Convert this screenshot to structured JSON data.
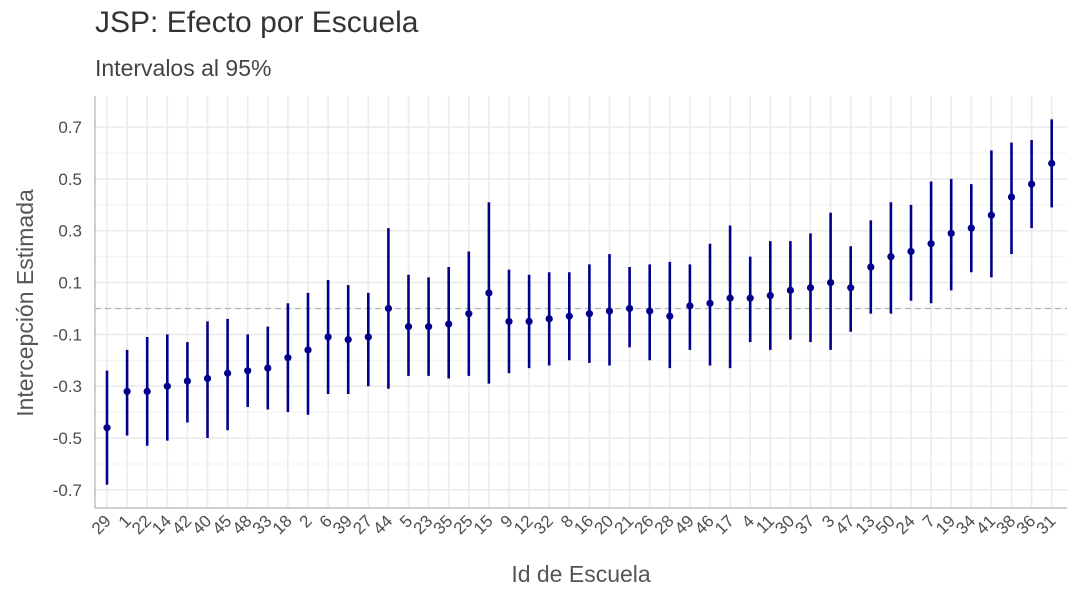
{
  "chart_data": {
    "type": "errorbar",
    "title": "JSP: Efecto por Escuela",
    "subtitle": "Intervalos al 95%",
    "xlabel": "Id de Escuela",
    "ylabel": "Intercepción Estimada",
    "ylim": [
      -0.77,
      0.82
    ],
    "yticks": [
      -0.7,
      -0.5,
      -0.3,
      -0.1,
      0.1,
      0.3,
      0.5,
      0.7
    ],
    "ytick_labels": [
      "-0.7",
      "-0.5",
      "-0.3",
      "-0.1",
      "0.1",
      "0.3",
      "0.5",
      "0.7"
    ],
    "reference_line": 0,
    "grid": true,
    "point_color": "#00008b",
    "categories": [
      "29",
      "1",
      "22",
      "14",
      "42",
      "40",
      "45",
      "48",
      "33",
      "18",
      "2",
      "6",
      "39",
      "27",
      "44",
      "5",
      "23",
      "35",
      "25",
      "15",
      "9",
      "12",
      "32",
      "8",
      "16",
      "20",
      "21",
      "26",
      "28",
      "49",
      "46",
      "17",
      "4",
      "11",
      "30",
      "37",
      "3",
      "47",
      "13",
      "50",
      "24",
      "7",
      "19",
      "34",
      "41",
      "38",
      "36",
      "31"
    ],
    "estimate": [
      -0.46,
      -0.32,
      -0.32,
      -0.3,
      -0.28,
      -0.27,
      -0.25,
      -0.24,
      -0.23,
      -0.19,
      -0.16,
      -0.11,
      -0.12,
      -0.11,
      0.0,
      -0.07,
      -0.07,
      -0.06,
      -0.02,
      0.06,
      -0.05,
      -0.05,
      -0.04,
      -0.03,
      -0.02,
      -0.01,
      0.0,
      -0.01,
      -0.03,
      0.01,
      0.02,
      0.04,
      0.04,
      0.05,
      0.07,
      0.08,
      0.1,
      0.08,
      0.16,
      0.2,
      0.22,
      0.25,
      0.29,
      0.31,
      0.36,
      0.43,
      0.48,
      0.56
    ],
    "lower": [
      -0.68,
      -0.49,
      -0.53,
      -0.51,
      -0.44,
      -0.5,
      -0.47,
      -0.38,
      -0.39,
      -0.4,
      -0.41,
      -0.33,
      -0.33,
      -0.3,
      -0.31,
      -0.26,
      -0.26,
      -0.27,
      -0.26,
      -0.29,
      -0.25,
      -0.23,
      -0.22,
      -0.2,
      -0.21,
      -0.22,
      -0.15,
      -0.2,
      -0.23,
      -0.16,
      -0.22,
      -0.23,
      -0.13,
      -0.16,
      -0.12,
      -0.13,
      -0.16,
      -0.09,
      -0.02,
      -0.02,
      0.03,
      0.02,
      0.07,
      0.14,
      0.12,
      0.21,
      0.31,
      0.39
    ],
    "upper": [
      -0.24,
      -0.16,
      -0.11,
      -0.1,
      -0.13,
      -0.05,
      -0.04,
      -0.1,
      -0.07,
      0.02,
      0.06,
      0.11,
      0.09,
      0.06,
      0.31,
      0.13,
      0.12,
      0.16,
      0.22,
      0.41,
      0.15,
      0.13,
      0.14,
      0.14,
      0.17,
      0.21,
      0.16,
      0.17,
      0.18,
      0.17,
      0.25,
      0.32,
      0.2,
      0.26,
      0.26,
      0.29,
      0.37,
      0.24,
      0.34,
      0.41,
      0.4,
      0.49,
      0.5,
      0.48,
      0.61,
      0.64,
      0.65,
      0.73
    ]
  }
}
